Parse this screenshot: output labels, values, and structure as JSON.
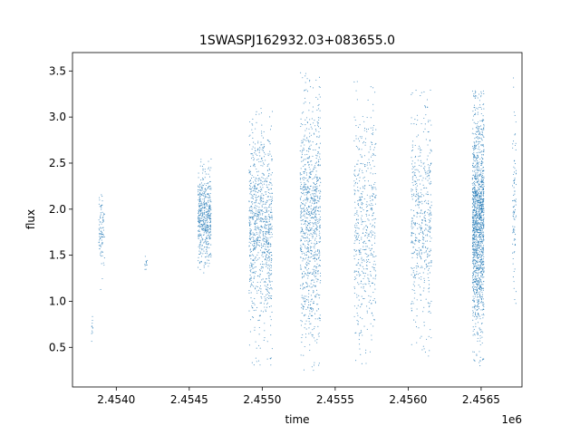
{
  "chart_data": {
    "type": "scatter",
    "title": "1SWASPJ162932.03+083655.0",
    "xlabel": "time",
    "ylabel": "flux",
    "x_offset_label": "1e6",
    "xlim": [
      2453700,
      2456780
    ],
    "ylim": [
      0.07,
      3.7
    ],
    "xticks": [
      2454000,
      2454500,
      2455000,
      2455500,
      2456000,
      2456500
    ],
    "xtick_labels": [
      "2.4540",
      "2.4545",
      "2.4550",
      "2.4555",
      "2.4560",
      "2.4565"
    ],
    "yticks": [
      0.5,
      1.0,
      1.5,
      2.0,
      2.5,
      3.0,
      3.5
    ],
    "ytick_labels": [
      "0.5",
      "1.0",
      "1.5",
      "2.0",
      "2.5",
      "3.0",
      "3.5"
    ],
    "grid": false,
    "marker_color": "#1f77b4",
    "observing_seasons": [
      {
        "x_start": 2453830,
        "x_end": 2453840,
        "y_min": 0.25,
        "y_max": 0.95,
        "y_center": 0.7,
        "density": "sparse"
      },
      {
        "x_start": 2453880,
        "x_end": 2453920,
        "y_min": 1.0,
        "y_max": 2.25,
        "y_center": 1.75,
        "density": "low"
      },
      {
        "x_start": 2454195,
        "x_end": 2454215,
        "y_min": 1.25,
        "y_max": 1.6,
        "y_center": 1.4,
        "density": "sparse"
      },
      {
        "x_start": 2454560,
        "x_end": 2454650,
        "y_min": 1.3,
        "y_max": 2.55,
        "y_center": 1.9,
        "density": "medium"
      },
      {
        "x_start": 2454910,
        "x_end": 2455070,
        "y_min": 0.3,
        "y_max": 3.1,
        "y_center": 1.8,
        "density": "high"
      },
      {
        "x_start": 2455260,
        "x_end": 2455400,
        "y_min": 0.25,
        "y_max": 3.5,
        "y_center": 1.85,
        "density": "high"
      },
      {
        "x_start": 2455630,
        "x_end": 2455780,
        "y_min": 0.3,
        "y_max": 3.45,
        "y_center": 1.85,
        "density": "medium"
      },
      {
        "x_start": 2456020,
        "x_end": 2456160,
        "y_min": 0.4,
        "y_max": 3.3,
        "y_center": 1.9,
        "density": "medium"
      },
      {
        "x_start": 2456440,
        "x_end": 2456520,
        "y_min": 0.3,
        "y_max": 3.3,
        "y_center": 1.85,
        "density": "very_high"
      },
      {
        "x_start": 2456715,
        "x_end": 2456740,
        "y_min": 0.7,
        "y_max": 3.5,
        "y_center": 1.9,
        "density": "low"
      }
    ]
  }
}
